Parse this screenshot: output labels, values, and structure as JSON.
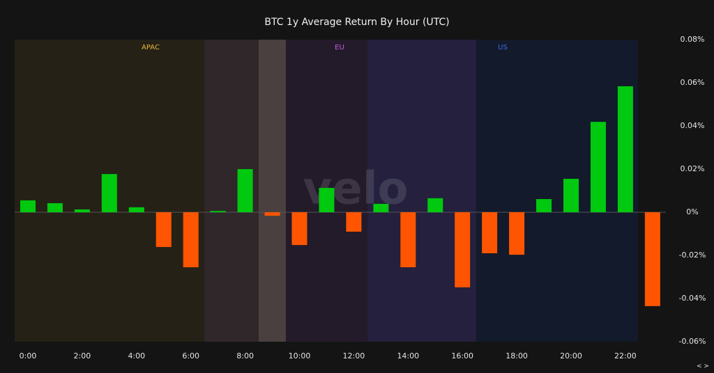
{
  "chart_data": {
    "type": "bar",
    "title": "BTC 1y Average Return By Hour (UTC)",
    "watermark": "velo",
    "nav": "< >",
    "sessions": [
      {
        "label": "APAC",
        "color": "#e3b53b"
      },
      {
        "label": "EU",
        "color": "#c45de0"
      },
      {
        "label": "US",
        "color": "#3e6fe0"
      }
    ],
    "categories": [
      "0:00",
      null,
      "2:00",
      null,
      "4:00",
      null,
      "6:00",
      null,
      "8:00",
      null,
      "10:00",
      null,
      "12:00",
      null,
      "14:00",
      null,
      "16:00",
      null,
      "18:00",
      null,
      "20:00",
      null,
      "22:00",
      null
    ],
    "values": [
      0.0055,
      0.0042,
      0.0013,
      0.0177,
      0.0023,
      -0.0161,
      -0.0255,
      0.0006,
      0.02,
      -0.0016,
      -0.0152,
      0.0113,
      -0.009,
      0.0039,
      -0.0255,
      0.0065,
      -0.0348,
      -0.019,
      -0.0197,
      0.0061,
      0.0155,
      0.0419,
      0.0584,
      -0.0435
    ],
    "positive_color": "#00c90f",
    "negative_color": "#ff5500",
    "ylim": [
      -0.06,
      0.08
    ],
    "yticks": [
      {
        "value": -0.06,
        "label": "-0.06%"
      },
      {
        "value": -0.04,
        "label": "-0.04%"
      },
      {
        "value": -0.02,
        "label": "-0.02%"
      },
      {
        "value": 0,
        "label": "0%"
      },
      {
        "value": 0.02,
        "label": "0.02%"
      },
      {
        "value": 0.04,
        "label": "0.04%"
      },
      {
        "value": 0.06,
        "label": "0.06%"
      },
      {
        "value": 0.08,
        "label": "0.08%"
      }
    ]
  }
}
